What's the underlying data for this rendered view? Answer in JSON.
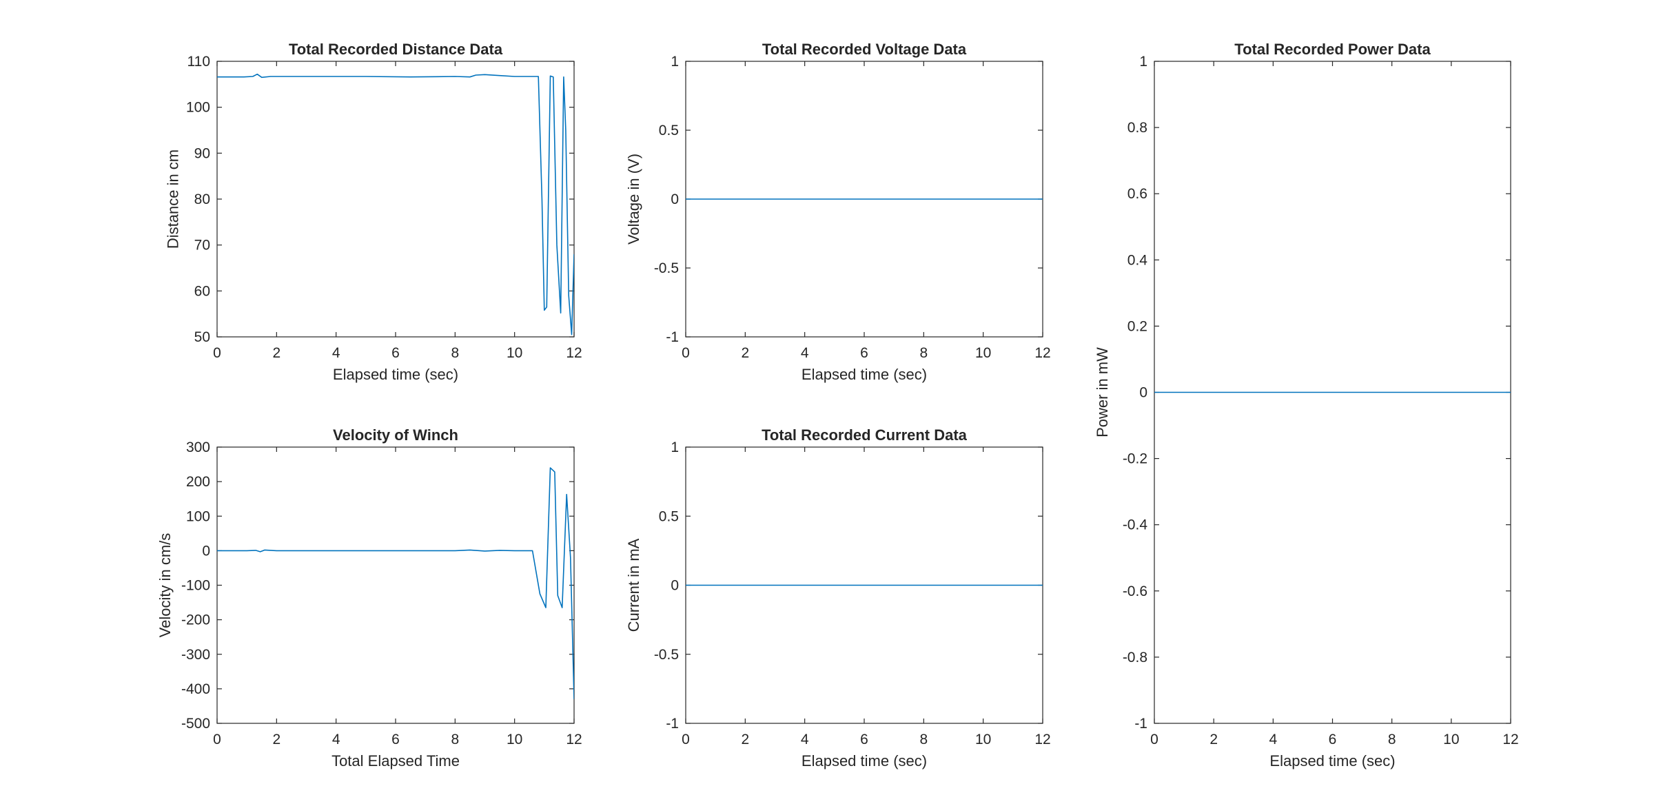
{
  "chart_data": [
    {
      "type": "line",
      "title": "Total Recorded Distance Data",
      "xlabel": "Elapsed time (sec)",
      "ylabel": "Distance in cm",
      "xlim": [
        0,
        12
      ],
      "ylim": [
        50,
        110
      ],
      "xticks": [
        0,
        2,
        4,
        6,
        8,
        10,
        12
      ],
      "yticks": [
        50,
        60,
        70,
        80,
        90,
        100,
        110
      ],
      "grid": false,
      "line_color": "#0072BD",
      "series": [
        {
          "x": [
            0,
            0.3,
            0.6,
            0.9,
            1.2,
            1.35,
            1.5,
            1.8,
            2.5,
            3.5,
            5,
            6.5,
            8,
            8.5,
            8.7,
            9,
            9.5,
            10,
            10.5,
            10.8,
            10.92,
            11.0,
            11.08,
            11.2,
            11.3,
            11.42,
            11.55,
            11.65,
            11.72,
            11.82,
            11.92,
            12.0
          ],
          "y": [
            106.6,
            106.6,
            106.6,
            106.6,
            106.7,
            107.2,
            106.5,
            106.7,
            106.7,
            106.7,
            106.7,
            106.6,
            106.7,
            106.6,
            107.0,
            107.1,
            106.9,
            106.7,
            106.7,
            106.7,
            80.0,
            55.8,
            56.5,
            106.8,
            106.6,
            70.0,
            55.2,
            106.6,
            95.0,
            59.0,
            50.5,
            68.0
          ]
        }
      ]
    },
    {
      "type": "line",
      "title": "Total Recorded Voltage Data",
      "xlabel": "Elapsed time (sec)",
      "ylabel": "Voltage in (V)",
      "xlim": [
        0,
        12
      ],
      "ylim": [
        -1,
        1
      ],
      "xticks": [
        0,
        2,
        4,
        6,
        8,
        10,
        12
      ],
      "yticks": [
        -1,
        -0.5,
        0,
        0.5,
        1
      ],
      "grid": false,
      "line_color": "#0072BD",
      "series": [
        {
          "x": [
            0,
            12
          ],
          "y": [
            0,
            0
          ]
        }
      ]
    },
    {
      "type": "line",
      "title": "Total Recorded Power Data",
      "xlabel": "Elapsed time (sec)",
      "ylabel": "Power in mW",
      "xlim": [
        0,
        12
      ],
      "ylim": [
        -1,
        1
      ],
      "xticks": [
        0,
        2,
        4,
        6,
        8,
        10,
        12
      ],
      "yticks": [
        -1,
        -0.8,
        -0.6,
        -0.4,
        -0.2,
        0,
        0.2,
        0.4,
        0.6,
        0.8,
        1
      ],
      "grid": false,
      "line_color": "#0072BD",
      "series": [
        {
          "x": [
            0,
            12
          ],
          "y": [
            0,
            0
          ]
        }
      ]
    },
    {
      "type": "line",
      "title": "Velocity of Winch",
      "xlabel": "Total Elapsed Time",
      "ylabel": "Velocity in cm/s",
      "xlim": [
        0,
        12
      ],
      "ylim": [
        -500,
        300
      ],
      "xticks": [
        0,
        2,
        4,
        6,
        8,
        10,
        12
      ],
      "yticks": [
        -500,
        -400,
        -300,
        -200,
        -100,
        0,
        100,
        200,
        300
      ],
      "grid": false,
      "line_color": "#0072BD",
      "series": [
        {
          "x": [
            0,
            0.5,
            1.0,
            1.3,
            1.45,
            1.6,
            2,
            3,
            4,
            5,
            6,
            7,
            8,
            8.5,
            9,
            9.5,
            10,
            10.6,
            10.85,
            11.05,
            11.2,
            11.35,
            11.45,
            11.6,
            11.75,
            11.88,
            12.0
          ],
          "y": [
            0,
            0,
            0,
            1,
            -3,
            2,
            0,
            0,
            0,
            0,
            0,
            0,
            0,
            2,
            -1,
            1,
            0,
            0,
            -125,
            -165,
            240,
            228,
            -130,
            -165,
            163,
            -20,
            -430
          ]
        }
      ]
    },
    {
      "type": "line",
      "title": "Total Recorded Current Data",
      "xlabel": "Elapsed time (sec)",
      "ylabel": "Current in mA",
      "xlim": [
        0,
        12
      ],
      "ylim": [
        -1,
        1
      ],
      "xticks": [
        0,
        2,
        4,
        6,
        8,
        10,
        12
      ],
      "yticks": [
        -1,
        -0.5,
        0,
        0.5,
        1
      ],
      "grid": false,
      "line_color": "#0072BD",
      "series": [
        {
          "x": [
            0,
            12
          ],
          "y": [
            0,
            0
          ]
        }
      ]
    }
  ]
}
